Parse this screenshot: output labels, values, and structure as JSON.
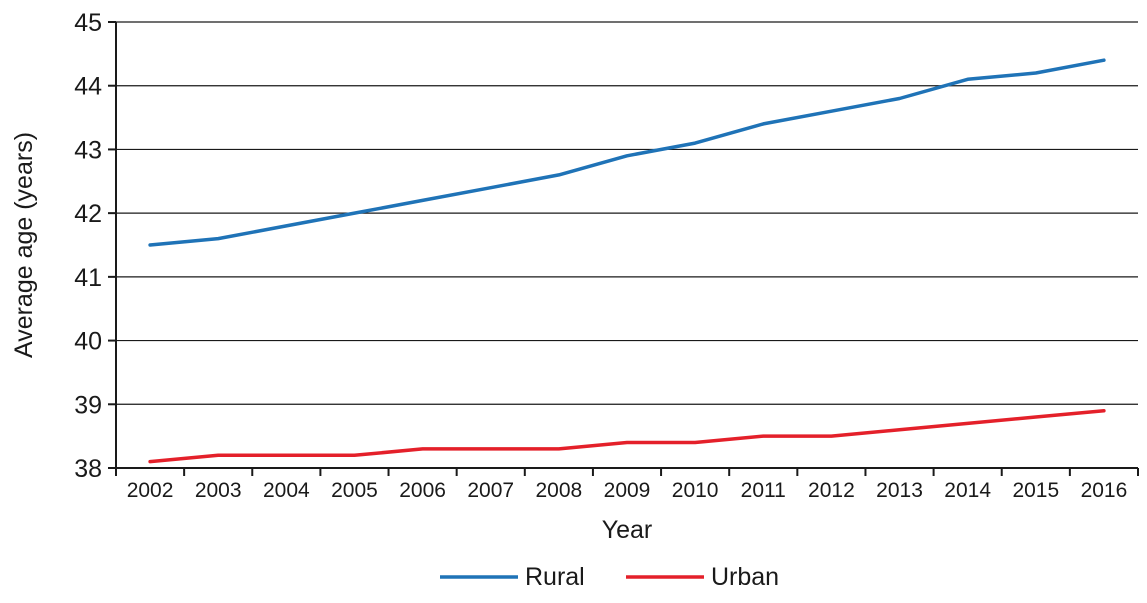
{
  "chart_data": {
    "type": "line",
    "title": "",
    "xlabel": "Year",
    "ylabel": "Average age (years)",
    "categories": [
      "2002",
      "2003",
      "2004",
      "2005",
      "2006",
      "2007",
      "2008",
      "2009",
      "2010",
      "2011",
      "2012",
      "2013",
      "2014",
      "2015",
      "2016"
    ],
    "ylim": [
      38,
      45
    ],
    "yticks": [
      38,
      39,
      40,
      41,
      42,
      43,
      44,
      45
    ],
    "grid": "horizontal",
    "legend_position": "bottom-center",
    "series": [
      {
        "name": "Rural",
        "color": "#1f73b7",
        "values": [
          41.5,
          41.6,
          41.8,
          42.0,
          42.2,
          42.4,
          42.6,
          42.9,
          43.1,
          43.4,
          43.6,
          43.8,
          44.1,
          44.2,
          44.4
        ]
      },
      {
        "name": "Urban",
        "color": "#e4202a",
        "values": [
          38.1,
          38.2,
          38.2,
          38.2,
          38.3,
          38.3,
          38.3,
          38.4,
          38.4,
          38.5,
          38.5,
          38.6,
          38.7,
          38.8,
          38.9
        ]
      }
    ]
  }
}
